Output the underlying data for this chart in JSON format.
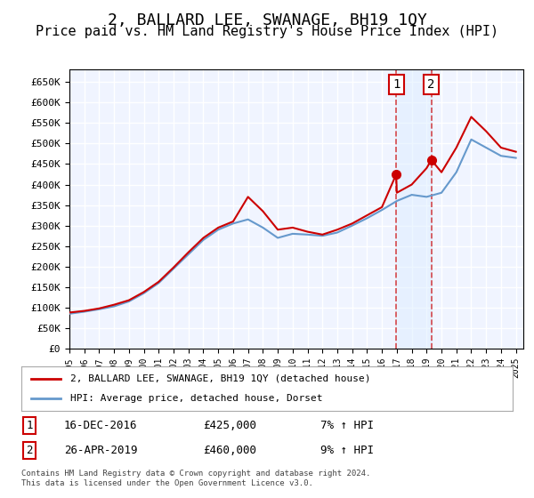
{
  "title": "2, BALLARD LEE, SWANAGE, BH19 1QY",
  "subtitle": "Price paid vs. HM Land Registry's House Price Index (HPI)",
  "title_fontsize": 13,
  "subtitle_fontsize": 11,
  "ylabel_ticks": [
    "£0",
    "£50K",
    "£100K",
    "£150K",
    "£200K",
    "£250K",
    "£300K",
    "£350K",
    "£400K",
    "£450K",
    "£500K",
    "£550K",
    "£600K",
    "£650K"
  ],
  "ylim": [
    0,
    680000
  ],
  "xlim_start": 1995.0,
  "xlim_end": 2025.5,
  "background_color": "#ffffff",
  "plot_bg_color": "#f0f4ff",
  "grid_color": "#ffffff",
  "sale1_x": 2016.958,
  "sale1_y": 425000,
  "sale2_x": 2019.32,
  "sale2_y": 460000,
  "sale1_label": "1",
  "sale2_label": "2",
  "sale1_date": "16-DEC-2016",
  "sale1_price": "£425,000",
  "sale1_hpi": "7% ↑ HPI",
  "sale2_date": "26-APR-2019",
  "sale2_price": "£460,000",
  "sale2_hpi": "9% ↑ HPI",
  "hpi_line_color": "#6699cc",
  "price_line_color": "#cc0000",
  "vline_color": "#cc0000",
  "vline_alpha": 0.7,
  "shade_color": "#ddeeff",
  "shade_alpha": 0.5,
  "legend_label_price": "2, BALLARD LEE, SWANAGE, BH19 1QY (detached house)",
  "legend_label_hpi": "HPI: Average price, detached house, Dorset",
  "footer": "Contains HM Land Registry data © Crown copyright and database right 2024.\nThis data is licensed under the Open Government Licence v3.0.",
  "hpi_years": [
    1995,
    1996,
    1997,
    1998,
    1999,
    2000,
    2001,
    2002,
    2003,
    2004,
    2005,
    2006,
    2007,
    2008,
    2009,
    2010,
    2011,
    2012,
    2013,
    2014,
    2015,
    2016,
    2017,
    2018,
    2019,
    2020,
    2021,
    2022,
    2023,
    2024,
    2025
  ],
  "hpi_values": [
    85000,
    90000,
    96000,
    103000,
    115000,
    135000,
    160000,
    195000,
    230000,
    265000,
    290000,
    305000,
    315000,
    295000,
    270000,
    280000,
    278000,
    275000,
    283000,
    300000,
    318000,
    338000,
    360000,
    375000,
    370000,
    380000,
    430000,
    510000,
    490000,
    470000,
    465000
  ],
  "price_years": [
    1995,
    1996,
    1997,
    1998,
    1999,
    2000,
    2001,
    2002,
    2003,
    2004,
    2005,
    2006,
    2007,
    2008,
    2009,
    2010,
    2011,
    2012,
    2013,
    2014,
    2015,
    2016,
    2016.96,
    2017,
    2018,
    2019,
    2019.32,
    2020,
    2021,
    2022,
    2023,
    2024,
    2025
  ],
  "price_values": [
    88000,
    92000,
    98000,
    107000,
    118000,
    138000,
    163000,
    198000,
    235000,
    270000,
    295000,
    310000,
    370000,
    335000,
    290000,
    295000,
    285000,
    278000,
    290000,
    305000,
    325000,
    345000,
    425000,
    380000,
    400000,
    440000,
    460000,
    430000,
    490000,
    565000,
    530000,
    490000,
    480000
  ]
}
